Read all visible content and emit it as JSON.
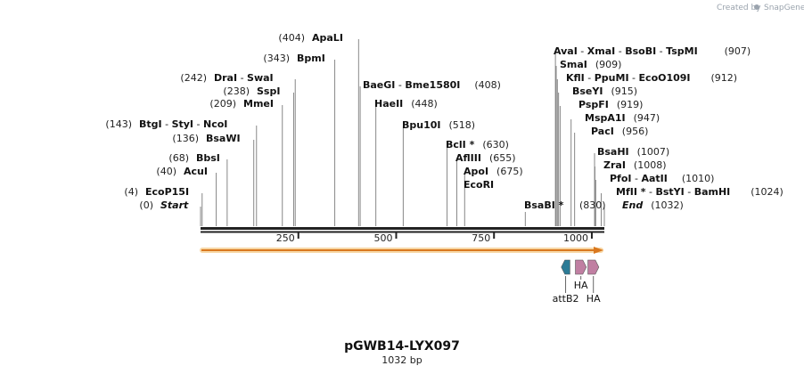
{
  "header": {
    "credit_prefix": "Created by",
    "credit_brand": "SnapGene"
  },
  "plasmid": {
    "name": "pGWB14-LYX097",
    "length_label": "1032 bp",
    "length": 1032
  },
  "colors": {
    "backbone": "#222222",
    "arrow_fill": "#d9781f",
    "arrow_glow": "#f7d7a6",
    "attB2": "#2c7b96",
    "HA": "#c07fa2"
  },
  "sites_left": [
    {
      "pos": 404,
      "pos_label": "(404)",
      "names": [
        "ApaLI"
      ]
    },
    {
      "pos": 343,
      "pos_label": "(343)",
      "names": [
        "BpmI"
      ]
    },
    {
      "pos": 242,
      "pos_label": "(242)",
      "names": [
        "DraI",
        "SwaI"
      ]
    },
    {
      "pos": 238,
      "pos_label": "(238)",
      "names": [
        "SspI"
      ]
    },
    {
      "pos": 209,
      "pos_label": "(209)",
      "names": [
        "MmeI"
      ]
    },
    {
      "pos": 143,
      "pos_label": "(143)",
      "names": [
        "BtgI",
        "StyI",
        "NcoI"
      ]
    },
    {
      "pos": 136,
      "pos_label": "(136)",
      "names": [
        "BsaWI"
      ]
    },
    {
      "pos": 68,
      "pos_label": "(68)",
      "names": [
        "BbsI"
      ]
    },
    {
      "pos": 40,
      "pos_label": "(40)",
      "names": [
        "AcuI"
      ]
    },
    {
      "pos": 4,
      "pos_label": "(4)",
      "names": [
        "EcoP15I"
      ]
    },
    {
      "pos": 0,
      "pos_label": "(0)",
      "names": [
        "Start"
      ]
    }
  ],
  "sites_mid": [
    {
      "pos": 408,
      "pos_label": "(408)",
      "names": [
        "BaeGI",
        "Bme1580I"
      ]
    },
    {
      "pos": 448,
      "pos_label": "(448)",
      "names": [
        "HaeII"
      ]
    },
    {
      "pos": 518,
      "pos_label": "(518)",
      "names": [
        "Bpu10I"
      ]
    },
    {
      "pos": 630,
      "pos_label": "(630)",
      "names": [
        "BclI *"
      ]
    },
    {
      "pos": 655,
      "pos_label": "(655)",
      "names": [
        "AflIII"
      ]
    },
    {
      "pos": 675,
      "pos_label": "(675)",
      "names": [
        "ApoI"
      ]
    },
    {
      "pos": 675,
      "pos_label": "",
      "names": [
        "EcoRI"
      ]
    }
  ],
  "sites_right": [
    {
      "pos": 907,
      "pos_label": "(907)",
      "names": [
        "AvaI",
        "XmaI",
        "BsoBI",
        "TspMI"
      ]
    },
    {
      "pos": 909,
      "pos_label": "(909)",
      "names": [
        "SmaI"
      ]
    },
    {
      "pos": 912,
      "pos_label": "(912)",
      "names": [
        "KflI",
        "PpuMI",
        "EcoO109I"
      ]
    },
    {
      "pos": 915,
      "pos_label": "(915)",
      "names": [
        "BseYI"
      ]
    },
    {
      "pos": 919,
      "pos_label": "(919)",
      "names": [
        "PspFI"
      ]
    },
    {
      "pos": 947,
      "pos_label": "(947)",
      "names": [
        "MspA1I"
      ]
    },
    {
      "pos": 956,
      "pos_label": "(956)",
      "names": [
        "PacI"
      ]
    },
    {
      "pos": 1007,
      "pos_label": "(1007)",
      "names": [
        "BsaHI"
      ]
    },
    {
      "pos": 1008,
      "pos_label": "(1008)",
      "names": [
        "ZraI"
      ]
    },
    {
      "pos": 1010,
      "pos_label": "(1010)",
      "names": [
        "PfoI",
        "AatII"
      ]
    },
    {
      "pos": 1024,
      "pos_label": "(1024)",
      "names": [
        "MfII *",
        "BstYI",
        "BamHI"
      ]
    },
    {
      "pos": 1032,
      "pos_label": "(1032)",
      "names": [
        "End"
      ]
    }
  ],
  "site_bsabi": {
    "pos": 830,
    "pos_label": "(830)",
    "names": [
      "BsaBI *"
    ]
  },
  "ruler": {
    "ticks": [
      250,
      500,
      750,
      1000
    ]
  },
  "features": [
    {
      "name": "attB2",
      "start": 922,
      "end": 944,
      "strand": "-",
      "color_key": "attB2"
    },
    {
      "name": "HA",
      "start": 958,
      "end": 986,
      "strand": "+",
      "color_key": "HA"
    },
    {
      "name": "HA",
      "start": 990,
      "end": 1018,
      "strand": "+",
      "color_key": "HA"
    }
  ]
}
